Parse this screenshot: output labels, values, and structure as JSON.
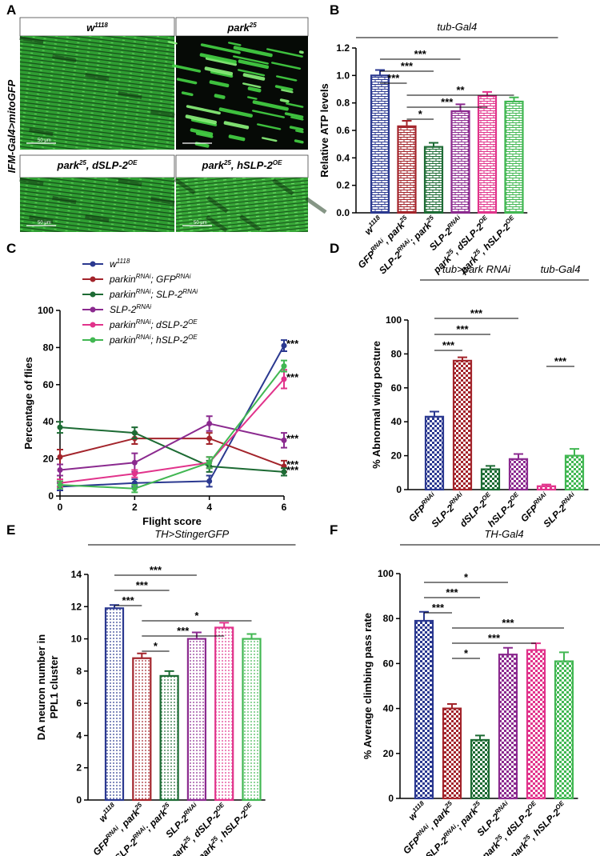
{
  "image_panel": {
    "letter": "A",
    "side_label": "IFM-Gal4>mitoGFP",
    "images": [
      {
        "label": [
          "w",
          "1118"
        ],
        "scale_bar": "50 μm"
      },
      {
        "label": [
          "park",
          "25"
        ]
      },
      {
        "label": [
          "park",
          "25",
          ", dSLP-2",
          "OE"
        ],
        "scale_bar": "50 μm"
      },
      {
        "label": [
          "park",
          "25",
          ", hSLP-2",
          "OE"
        ],
        "scale_bar": "50 μm"
      }
    ]
  },
  "chart_data": [
    {
      "type": "bar",
      "panel": "B",
      "pattern": "brick",
      "groups": [
        {
          "title": "tub-Gal4",
          "from": 0,
          "to": 5
        }
      ],
      "categories": [
        [
          "w",
          "1118"
        ],
        [
          "GFP",
          "RNAi",
          ", park",
          "25"
        ],
        [
          "SLP-2",
          "RNAi",
          "; park",
          "25"
        ],
        [
          "SLP-2",
          "RNAi"
        ],
        [
          "park",
          "25",
          ", dSLP-2",
          "OE"
        ],
        [
          "park",
          "25",
          ", hSLP-2",
          "OE"
        ]
      ],
      "values": [
        1.0,
        0.63,
        0.48,
        0.74,
        0.85,
        0.81
      ],
      "errors": [
        0.04,
        0.04,
        0.03,
        0.05,
        0.03,
        0.03
      ],
      "colors": [
        "#2b3990",
        "#a3242b",
        "#1d6b34",
        "#8b2a8f",
        "#e1338b",
        "#41b752"
      ],
      "ylabel": "Relative ATP levels",
      "ylim": [
        0,
        1.2
      ],
      "yticks": [
        {
          "value": 0,
          "label": "0.0"
        },
        0.2,
        0.4,
        0.6,
        0.8,
        {
          "value": 1,
          "label": "1.0"
        },
        1.2
      ],
      "brackets": [
        {
          "from": 0,
          "to": 3,
          "label": "***"
        },
        {
          "from": 0,
          "to": 2,
          "label": "***"
        },
        {
          "from": 0,
          "to": 1,
          "label": "***"
        },
        {
          "from": 1,
          "to": 5,
          "label": "**"
        },
        {
          "from": 1,
          "to": 4,
          "label": "***"
        },
        {
          "from": 1,
          "to": 2,
          "label": "*"
        }
      ]
    },
    {
      "type": "line",
      "panel": "C",
      "x": [
        0,
        2,
        4,
        6
      ],
      "xlim": [
        0,
        6
      ],
      "xticks": [
        0,
        2,
        4,
        6
      ],
      "ylim": [
        0,
        100
      ],
      "yticks": [
        0,
        20,
        40,
        60,
        80,
        100
      ],
      "xlabel": "Flight score",
      "ylabel": "Percentage of flies",
      "series": [
        {
          "name": [
            "w",
            "1118"
          ],
          "color": "#2b3990",
          "values": [
            5,
            7,
            8,
            81
          ],
          "errors": [
            2,
            2,
            3,
            3
          ]
        },
        {
          "name": [
            "parkin",
            "RNAi",
            "; GFP",
            "RNAi"
          ],
          "color": "#a3242b",
          "values": [
            21,
            31,
            31,
            16
          ],
          "errors": [
            4,
            3,
            3,
            3
          ]
        },
        {
          "name": [
            "parkin",
            "RNAi",
            "; SLP-2",
            "RNAi"
          ],
          "color": "#1d6b34",
          "values": [
            37,
            34,
            16,
            13
          ],
          "errors": [
            3,
            3,
            3,
            2
          ]
        },
        {
          "name": [
            "SLP-2",
            "RNAi"
          ],
          "color": "#8b2a8f",
          "values": [
            14,
            18,
            39,
            30
          ],
          "errors": [
            3,
            5,
            4,
            4
          ]
        },
        {
          "name": [
            "parkin",
            "RNAi",
            "; dSLP-2",
            "OE"
          ],
          "color": "#e1338b",
          "values": [
            7,
            12,
            18,
            63
          ],
          "errors": [
            2,
            2,
            3,
            5
          ]
        },
        {
          "name": [
            "parkin",
            "RNAi",
            "; hSLP-2",
            "OE"
          ],
          "color": "#41b752",
          "values": [
            6,
            4,
            18,
            70
          ],
          "errors": [
            2,
            2,
            3,
            3
          ]
        }
      ],
      "annotations": [
        {
          "series": 0,
          "label": "***"
        },
        {
          "series": 4,
          "label": "***"
        },
        {
          "series": 3,
          "label": "***"
        },
        {
          "series": 1,
          "label": "***"
        },
        {
          "series": 2,
          "label": "***"
        }
      ]
    },
    {
      "type": "bar",
      "panel": "D",
      "pattern": "checker",
      "groups": [
        {
          "title": "tub>park RNAi",
          "from": 0,
          "to": 3
        },
        {
          "title": "tub-Gal4",
          "from": 4,
          "to": 5
        }
      ],
      "categories": [
        [
          "GFP",
          "RNAi"
        ],
        [
          "SLP-2",
          "RNAi"
        ],
        [
          "dSLP-2",
          "OE"
        ],
        [
          "hSLP-2",
          "OE"
        ],
        [
          "GFP",
          "RNAi"
        ],
        [
          "SLP-2",
          "RNAi"
        ]
      ],
      "values": [
        43,
        76,
        12,
        18,
        2,
        20
      ],
      "errors": [
        3,
        2,
        2,
        3,
        1,
        4
      ],
      "colors": [
        "#2b3990",
        "#a3242b",
        "#1d6b34",
        "#8b2a8f",
        "#e1338b",
        "#41b752"
      ],
      "ylabel": "% Abnormal wing posture",
      "ylim": [
        0,
        100
      ],
      "yticks": [
        0,
        20,
        40,
        60,
        80,
        100
      ],
      "brackets": [
        {
          "from": 0,
          "to": 3,
          "label": "***"
        },
        {
          "from": 0,
          "to": 2,
          "label": "***"
        },
        {
          "from": 0,
          "to": 1,
          "label": "***"
        },
        {
          "from": 4,
          "to": 5,
          "label": "***"
        }
      ]
    },
    {
      "type": "bar",
      "panel": "E",
      "pattern": "dots",
      "groups": [
        {
          "title": "TH>StingerGFP",
          "from": 0,
          "to": 5
        }
      ],
      "categories": [
        [
          "w",
          "1118"
        ],
        [
          "GFP",
          "RNAi",
          ", park",
          "25"
        ],
        [
          "SLP-2",
          "RNAi",
          "; park",
          "25"
        ],
        [
          "SLP-2",
          "RNAi"
        ],
        [
          "park",
          "25",
          ", dSLP-2",
          "OE"
        ],
        [
          "park",
          "25",
          ", hSLP-2",
          "OE"
        ]
      ],
      "values": [
        11.9,
        8.8,
        7.7,
        10.0,
        10.7,
        10.0
      ],
      "errors": [
        0.2,
        0.3,
        0.3,
        0.4,
        0.3,
        0.3
      ],
      "colors": [
        "#2b3990",
        "#a3242b",
        "#1d6b34",
        "#8b2a8f",
        "#e1338b",
        "#41b752"
      ],
      "ylabel": [
        "DA neuron number in",
        "PPL1 cluster"
      ],
      "ylim": [
        0,
        14
      ],
      "yticks": [
        0,
        2,
        4,
        6,
        8,
        10,
        12,
        14
      ],
      "brackets": [
        {
          "from": 0,
          "to": 3,
          "label": "***"
        },
        {
          "from": 0,
          "to": 2,
          "label": "***"
        },
        {
          "from": 0,
          "to": 1,
          "label": "***"
        },
        {
          "from": 1,
          "to": 5,
          "label": "*"
        },
        {
          "from": 1,
          "to": 4,
          "label": "***"
        },
        {
          "from": 1,
          "to": 2,
          "label": "*"
        }
      ]
    },
    {
      "type": "bar",
      "panel": "F",
      "pattern": "checker",
      "groups": [
        {
          "title": "TH-Gal4",
          "from": 0,
          "to": 5
        }
      ],
      "categories": [
        [
          "w",
          "1118"
        ],
        [
          "GFP",
          "RNAi",
          ", park",
          "25"
        ],
        [
          "SLP-2",
          "RNAi",
          "; park",
          "25"
        ],
        [
          "SLP-2",
          "RNAi"
        ],
        [
          "park",
          "25",
          ", dSLP-2",
          "OE"
        ],
        [
          "park",
          "25",
          ", hSLP-2",
          "OE"
        ]
      ],
      "values": [
        79,
        40,
        26,
        64,
        66,
        61
      ],
      "errors": [
        4,
        2,
        2,
        3,
        3,
        4
      ],
      "colors": [
        "#2b3990",
        "#a3242b",
        "#1d6b34",
        "#8b2a8f",
        "#e1338b",
        "#41b752"
      ],
      "ylabel": "% Average climbing pass rate",
      "ylim": [
        0,
        100
      ],
      "yticks": [
        0,
        20,
        40,
        60,
        80,
        100
      ],
      "brackets": [
        {
          "from": 0,
          "to": 3,
          "label": "*"
        },
        {
          "from": 0,
          "to": 2,
          "label": "***"
        },
        {
          "from": 0,
          "to": 1,
          "label": "***"
        },
        {
          "from": 1,
          "to": 5,
          "label": "***"
        },
        {
          "from": 1,
          "to": 4,
          "label": "***"
        },
        {
          "from": 1,
          "to": 2,
          "label": "*"
        }
      ]
    }
  ]
}
